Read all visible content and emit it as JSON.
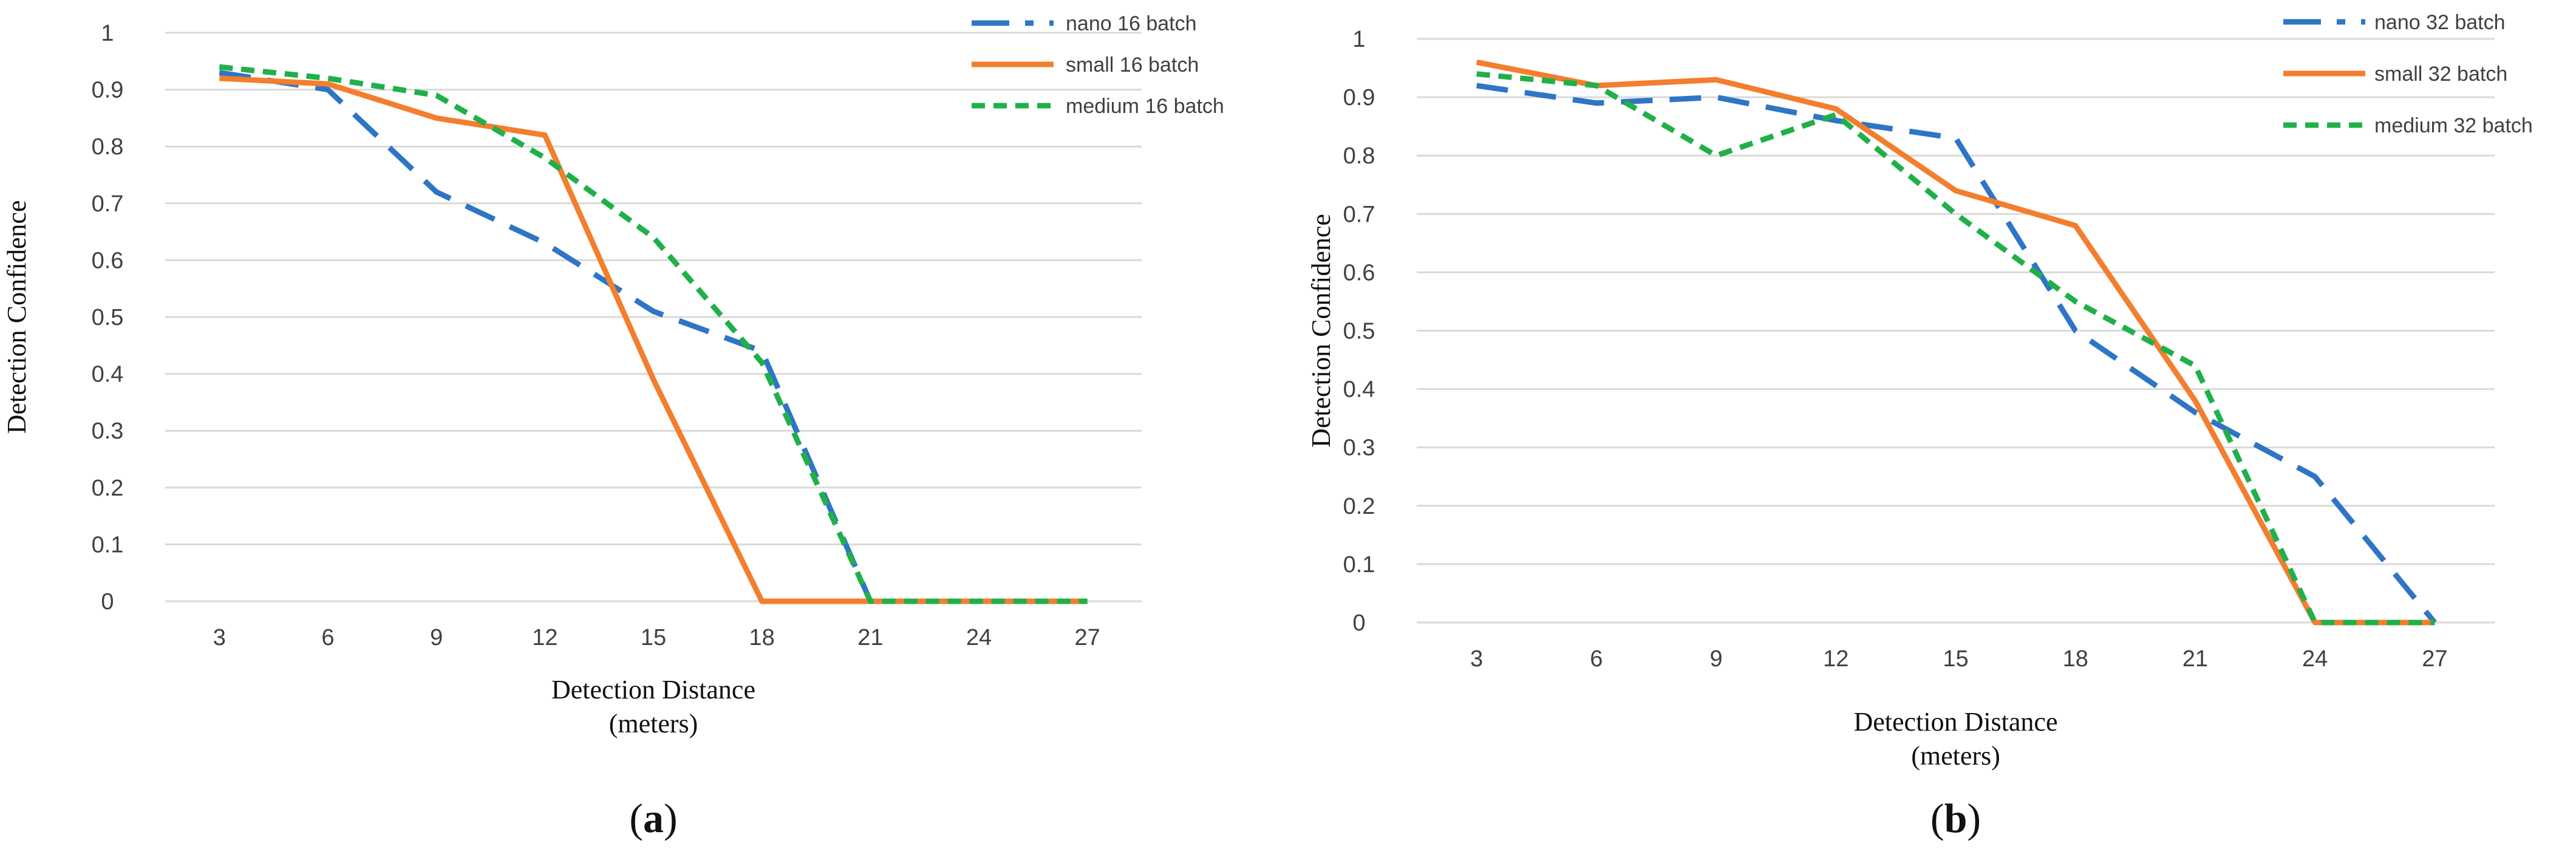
{
  "chart_data": [
    {
      "type": "line",
      "panel_label": "a",
      "title": "",
      "xlabel": "Detection Distance",
      "xlabel_unit": "(meters)",
      "ylabel": "Detection Confidence",
      "categories": [
        "3",
        "6",
        "9",
        "12",
        "15",
        "18",
        "21",
        "24",
        "27"
      ],
      "y_ticks": [
        "0",
        "0.1",
        "0.2",
        "0.3",
        "0.4",
        "0.5",
        "0.6",
        "0.7",
        "0.8",
        "0.9",
        "1"
      ],
      "ylim": [
        0,
        1
      ],
      "grid": true,
      "legend_position": "top-right",
      "series": [
        {
          "name": "nano 16 batch",
          "color": "#2E75C6",
          "style": "long-dash",
          "values": [
            0.93,
            0.9,
            0.72,
            0.63,
            0.51,
            0.44,
            0.0,
            0.0,
            0.0
          ]
        },
        {
          "name": "small 16 batch",
          "color": "#F37E2E",
          "style": "solid",
          "values": [
            0.92,
            0.91,
            0.85,
            0.82,
            0.39,
            0.0,
            0.0,
            0.0,
            0.0
          ]
        },
        {
          "name": "medium 16 batch",
          "color": "#20B04A",
          "style": "short-dash",
          "values": [
            0.94,
            0.92,
            0.89,
            0.78,
            0.64,
            0.42,
            0.0,
            0.0,
            0.0
          ]
        }
      ]
    },
    {
      "type": "line",
      "panel_label": "b",
      "title": "",
      "xlabel": "Detection Distance",
      "xlabel_unit": "(meters)",
      "ylabel": "Detection Confidence",
      "categories": [
        "3",
        "6",
        "9",
        "12",
        "15",
        "18",
        "21",
        "24",
        "27"
      ],
      "y_ticks": [
        "0",
        "0.1",
        "0.2",
        "0.3",
        "0.4",
        "0.5",
        "0.6",
        "0.7",
        "0.8",
        "0.9",
        "1"
      ],
      "ylim": [
        0,
        1
      ],
      "grid": true,
      "legend_position": "top-right",
      "series": [
        {
          "name": "nano 32 batch",
          "color": "#2E75C6",
          "style": "long-dash",
          "values": [
            0.92,
            0.89,
            0.9,
            0.86,
            0.83,
            0.5,
            0.36,
            0.25,
            0.0
          ]
        },
        {
          "name": "small 32 batch",
          "color": "#F37E2E",
          "style": "solid",
          "values": [
            0.96,
            0.92,
            0.93,
            0.88,
            0.74,
            0.68,
            0.38,
            0.0,
            0.0
          ]
        },
        {
          "name": "medium 32 batch",
          "color": "#20B04A",
          "style": "short-dash",
          "values": [
            0.94,
            0.92,
            0.8,
            0.87,
            0.7,
            0.55,
            0.44,
            0.0,
            0.0
          ]
        }
      ]
    }
  ]
}
